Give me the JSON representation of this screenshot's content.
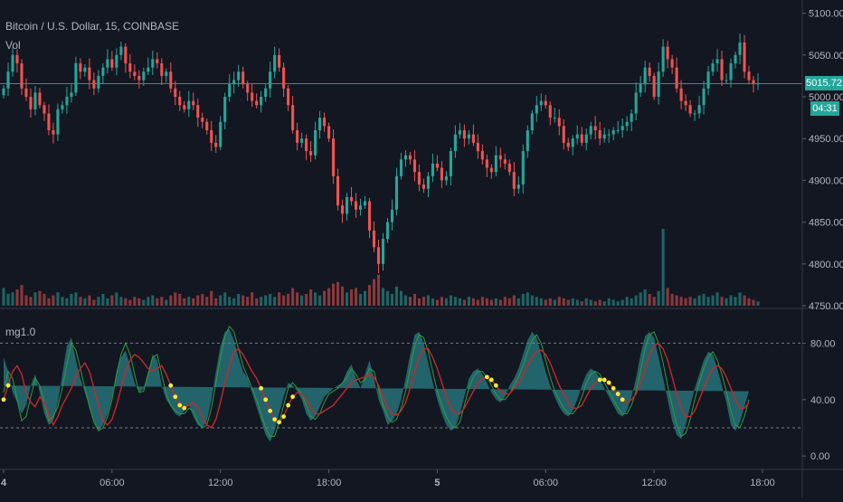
{
  "window": {
    "symbol_title": "Bitcoin / U.S. Dollar, 15, COINBASE",
    "volume_label": "Vol",
    "indicator_label": "mg1.0"
  },
  "price_axis": {
    "ticks": [
      "5100.00",
      "5050.00",
      "5000.00",
      "4950.00",
      "4900.00",
      "4850.00",
      "4800.00",
      "4750.00"
    ],
    "tick_values": [
      5100,
      5050,
      5000,
      4950,
      4900,
      4850,
      4800,
      4750
    ],
    "last_price": "5015.72",
    "countdown": "04:31"
  },
  "indicator_axis": {
    "ticks": [
      "80.00",
      "40.00",
      "0.00"
    ],
    "tick_values": [
      80,
      40,
      0
    ]
  },
  "time_axis": {
    "labels": [
      "4",
      "06:00",
      "12:00",
      "18:00",
      "5",
      "06:00",
      "12:00",
      "18:00"
    ]
  },
  "colors": {
    "background": "#131722",
    "up": "#26a69a",
    "down": "#ef5350",
    "indicator_fill": "#2a7f86",
    "signal_red": "#c62828",
    "signal_green": "#2e9d3b",
    "dots": "#ffeb3b"
  },
  "chart_data": {
    "type": "candlestick",
    "interval": "15",
    "price_range": [
      4750,
      5105
    ],
    "indicator_range": [
      -5,
      95
    ],
    "indicator_levels": [
      80,
      20
    ],
    "time_anchors": [
      {
        "label": "4",
        "index": 0
      },
      {
        "label": "06:00",
        "index": 24
      },
      {
        "label": "12:00",
        "index": 48
      },
      {
        "label": "18:00",
        "index": 72
      },
      {
        "label": "5",
        "index": 96
      },
      {
        "label": "06:00",
        "index": 120
      },
      {
        "label": "12:00",
        "index": 144
      },
      {
        "label": "18:00",
        "index": 168
      }
    ],
    "close": [
      5010,
      5030,
      5050,
      5040,
      5010,
      5000,
      4985,
      5005,
      4990,
      4980,
      4960,
      4955,
      4985,
      4990,
      5000,
      5005,
      5040,
      5030,
      5035,
      5020,
      5010,
      5025,
      5035,
      5045,
      5035,
      5050,
      5060,
      5040,
      5030,
      5025,
      5020,
      5030,
      5035,
      5045,
      5040,
      5025,
      5030,
      5010,
      5000,
      4990,
      4985,
      4995,
      4990,
      4975,
      4970,
      4960,
      4945,
      4940,
      4970,
      5000,
      5015,
      5020,
      5030,
      5015,
      5005,
      4995,
      4990,
      5000,
      5010,
      5030,
      5050,
      5035,
      5010,
      4990,
      4960,
      4945,
      4950,
      4935,
      4930,
      4960,
      4975,
      4965,
      4950,
      4905,
      4870,
      4860,
      4880,
      4875,
      4865,
      4870,
      4875,
      4840,
      4820,
      4800,
      4830,
      4850,
      4865,
      4905,
      4925,
      4930,
      4925,
      4910,
      4895,
      4890,
      4905,
      4920,
      4915,
      4900,
      4905,
      4935,
      4955,
      4960,
      4950,
      4955,
      4945,
      4935,
      4925,
      4915,
      4910,
      4930,
      4925,
      4920,
      4910,
      4890,
      4895,
      4935,
      4960,
      4980,
      4990,
      4995,
      4990,
      4975,
      4975,
      4965,
      4945,
      4940,
      4950,
      4955,
      4945,
      4955,
      4965,
      4960,
      4950,
      4955,
      4955,
      4960,
      4960,
      4965,
      4970,
      4980,
      5005,
      5015,
      5035,
      5025,
      5000,
      5030,
      5060,
      5045,
      5035,
      5010,
      4995,
      4990,
      4980,
      4980,
      4990,
      5010,
      5030,
      5040,
      5045,
      5020,
      5020,
      5040,
      5050,
      5065,
      5030,
      5020,
      5015,
      5016
    ],
    "volume": [
      1.2,
      0.8,
      0.9,
      1.1,
      1.4,
      0.7,
      0.6,
      0.9,
      1.0,
      0.8,
      0.5,
      0.7,
      0.9,
      0.6,
      0.5,
      0.8,
      0.9,
      0.6,
      0.5,
      0.7,
      0.4,
      0.6,
      0.8,
      0.5,
      0.7,
      0.9,
      0.6,
      0.5,
      0.4,
      0.6,
      0.5,
      0.4,
      0.6,
      0.7,
      0.5,
      0.6,
      0.4,
      0.7,
      0.9,
      0.8,
      0.5,
      0.6,
      0.5,
      0.7,
      0.8,
      0.6,
      1.0,
      0.5,
      0.7,
      0.9,
      0.6,
      0.5,
      0.8,
      0.7,
      0.6,
      0.9,
      0.5,
      0.6,
      0.7,
      0.8,
      0.6,
      0.9,
      0.7,
      0.8,
      1.2,
      0.9,
      0.7,
      0.8,
      1.1,
      0.9,
      0.7,
      1.0,
      1.2,
      1.5,
      1.6,
      1.3,
      0.9,
      1.1,
      1.2,
      0.8,
      1.0,
      1.4,
      1.8,
      2.1,
      1.2,
      1.0,
      0.8,
      1.3,
      1.0,
      0.7,
      0.6,
      0.8,
      0.5,
      0.6,
      0.7,
      0.5,
      0.4,
      0.6,
      0.5,
      0.7,
      0.6,
      0.5,
      0.4,
      0.6,
      0.5,
      0.4,
      0.6,
      0.5,
      0.4,
      0.5,
      0.4,
      0.6,
      0.5,
      0.7,
      0.5,
      0.8,
      0.9,
      0.7,
      0.6,
      0.5,
      0.4,
      0.5,
      0.4,
      0.6,
      0.5,
      0.4,
      0.5,
      0.4,
      0.3,
      0.5,
      0.4,
      0.3,
      0.4,
      0.3,
      0.5,
      0.4,
      0.3,
      0.4,
      0.6,
      0.5,
      0.7,
      0.9,
      1.1,
      0.8,
      0.6,
      1.0,
      5.2,
      1.2,
      0.8,
      0.7,
      0.6,
      0.5,
      0.6,
      0.5,
      0.7,
      0.8,
      0.6,
      0.7,
      0.9,
      0.6,
      0.5,
      0.7,
      0.6,
      0.9,
      0.7,
      0.5,
      0.4,
      0.3
    ],
    "oscillator": [
      70,
      60,
      45,
      38,
      30,
      36,
      50,
      58,
      45,
      30,
      22,
      25,
      38,
      58,
      78,
      84,
      68,
      55,
      45,
      35,
      25,
      18,
      22,
      30,
      42,
      60,
      70,
      75,
      64,
      52,
      45,
      48,
      60,
      72,
      68,
      50,
      40,
      35,
      30,
      28,
      32,
      36,
      28,
      22,
      20,
      25,
      40,
      60,
      78,
      88,
      90,
      82,
      70,
      60,
      55,
      45,
      35,
      25,
      15,
      10,
      18,
      30,
      42,
      52,
      50,
      46,
      40,
      30,
      25,
      28,
      35,
      42,
      45,
      48,
      50,
      52,
      60,
      65,
      55,
      48,
      58,
      68,
      55,
      40,
      32,
      22,
      25,
      30,
      40,
      55,
      72,
      86,
      88,
      80,
      66,
      52,
      40,
      30,
      22,
      18,
      20,
      30,
      42,
      55,
      60,
      62,
      58,
      52,
      45,
      40,
      38,
      42,
      50,
      55,
      62,
      72,
      82,
      88,
      84,
      72,
      60,
      50,
      42,
      35,
      30,
      28,
      32,
      40,
      50,
      58,
      62,
      60,
      55,
      48,
      42,
      36,
      30,
      28,
      32,
      42,
      55,
      72,
      85,
      88,
      84,
      70,
      55,
      40,
      25,
      15,
      12,
      22,
      35,
      48,
      58,
      68,
      74,
      72,
      62,
      50,
      38,
      22,
      18,
      24,
      35,
      46
    ],
    "signal": [
      40,
      50,
      60,
      64,
      58,
      45,
      38,
      35,
      42,
      38,
      30,
      22,
      28,
      36,
      42,
      48,
      56,
      62,
      66,
      60,
      48,
      36,
      25,
      22,
      26,
      36,
      48,
      60,
      68,
      72,
      70,
      66,
      62,
      60,
      62,
      64,
      58,
      50,
      42,
      36,
      34,
      36,
      38,
      34,
      28,
      22,
      20,
      26,
      38,
      52,
      64,
      74,
      76,
      72,
      66,
      60,
      55,
      48,
      40,
      32,
      26,
      24,
      28,
      36,
      42,
      45,
      44,
      40,
      34,
      30,
      30,
      32,
      34,
      36,
      40,
      44,
      48,
      52,
      54,
      55,
      56,
      58,
      56,
      50,
      42,
      34,
      30,
      29,
      32,
      38,
      48,
      60,
      70,
      76,
      76,
      70,
      62,
      52,
      42,
      34,
      30,
      30,
      34,
      40,
      46,
      52,
      55,
      56,
      54,
      50,
      46,
      44,
      44,
      48,
      52,
      58,
      64,
      70,
      74,
      75,
      72,
      66,
      58,
      50,
      44,
      38,
      34,
      34,
      36,
      42,
      48,
      52,
      54,
      54,
      52,
      48,
      44,
      40,
      38,
      40,
      44,
      52,
      62,
      72,
      78,
      80,
      76,
      68,
      56,
      44,
      34,
      28,
      28,
      32,
      40,
      48,
      56,
      62,
      64,
      62,
      56,
      48,
      40,
      34,
      34,
      38
    ],
    "green": [
      45,
      60,
      55,
      40,
      25,
      28,
      42,
      55,
      50,
      38,
      25,
      28,
      35,
      48,
      65,
      80,
      75,
      62,
      48,
      35,
      24,
      18,
      20,
      28,
      40,
      58,
      72,
      80,
      72,
      58,
      45,
      46,
      58,
      70,
      72,
      58,
      44,
      36,
      32,
      30,
      30,
      34,
      32,
      24,
      20,
      22,
      34,
      52,
      70,
      85,
      92,
      88,
      76,
      64,
      56,
      48,
      40,
      30,
      20,
      14,
      14,
      24,
      36,
      48,
      52,
      48,
      44,
      36,
      28,
      26,
      30,
      38,
      44,
      46,
      48,
      52,
      56,
      62,
      58,
      52,
      54,
      62,
      60,
      48,
      36,
      28,
      24,
      26,
      34,
      46,
      62,
      78,
      86,
      84,
      74,
      60,
      46,
      36,
      28,
      22,
      20,
      24,
      36,
      48,
      56,
      60,
      60,
      56,
      50,
      44,
      40,
      40,
      44,
      50,
      56,
      64,
      74,
      82,
      86,
      80,
      68,
      56,
      46,
      40,
      34,
      30,
      30,
      34,
      42,
      52,
      58,
      60,
      58,
      52,
      46,
      40,
      34,
      30,
      30,
      36,
      46,
      60,
      76,
      86,
      88,
      80,
      66,
      50,
      36,
      22,
      14,
      16,
      26,
      40,
      52,
      62,
      70,
      74,
      68,
      58,
      46,
      32,
      22,
      20,
      28,
      40
    ],
    "dot_groups": [
      {
        "from": 0,
        "to": 1
      },
      {
        "from": 37,
        "to": 40
      },
      {
        "from": 57,
        "to": 64
      },
      {
        "from": 107,
        "to": 109
      },
      {
        "from": 132,
        "to": 137
      }
    ]
  }
}
